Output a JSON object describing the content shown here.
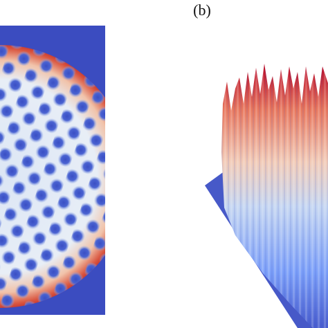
{
  "panel_label": "(b)"
}
